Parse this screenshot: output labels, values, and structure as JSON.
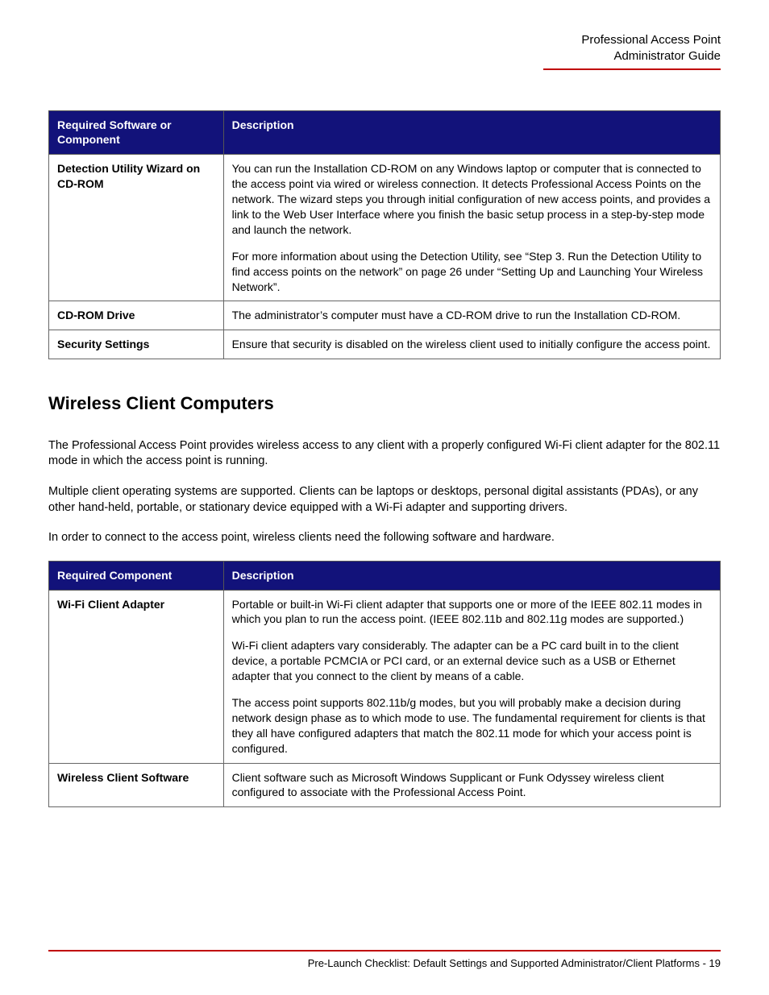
{
  "header": {
    "line1": "Professional Access Point",
    "line2": "Administrator Guide"
  },
  "colors": {
    "table_header_bg": "#12127a",
    "table_header_fg": "#ffffff",
    "rule_color": "#c00000"
  },
  "table1": {
    "col1_header": "Required Software or Component",
    "col2_header": "Description",
    "rows": [
      {
        "label": "Detection Utility Wizard on CD-ROM",
        "desc_p1": "You can run the Installation CD-ROM on any Windows laptop or computer that is connected to the access point via wired or wireless connection. It detects Professional Access Points on the network. The wizard steps you through initial configuration of new access points, and provides a link to the Web User Interface where you finish the basic setup process in a step-by-step mode and launch the network.",
        "desc_p2": "For more information about using the Detection Utility, see “Step 3. Run the Detection Utility to find access points on the network” on page 26 under “Setting Up and Launching Your Wireless Network”."
      },
      {
        "label": "CD-ROM Drive",
        "desc_p1": "The administrator’s computer must have a CD-ROM drive to run the Installation CD-ROM."
      },
      {
        "label": "Security Settings",
        "desc_p1": "Ensure that security is disabled on the wireless client used to initially configure the access point."
      }
    ]
  },
  "section_heading": "Wireless Client Computers",
  "paragraphs": {
    "p1": "The Professional Access Point provides wireless access to any client with a properly configured Wi-Fi client adapter for the 802.11 mode in which the access point is running.",
    "p2": "Multiple client operating systems are supported. Clients can be laptops or desktops, personal digital assistants (PDAs), or any other hand-held, portable, or stationary device equipped with a Wi-Fi adapter and supporting drivers.",
    "p3": "In order to connect to the access point, wireless clients need the following software and hardware."
  },
  "table2": {
    "col1_header": "Required Component",
    "col2_header": "Description",
    "rows": [
      {
        "label": "Wi-Fi Client Adapter",
        "desc_p1": "Portable or built-in Wi-Fi client adapter that supports one or more of the IEEE 802.11 modes in which you plan to run the access point. (IEEE 802.11b and 802.11g modes are supported.)",
        "desc_p2": "Wi-Fi client adapters vary considerably. The adapter can be a PC card built in to the client device, a portable PCMCIA or PCI card, or an external device such as a USB or Ethernet adapter that you connect to the client by means of a cable.",
        "desc_p3": "The access point supports 802.11b/g modes, but you will probably make a decision during network design phase as to which mode to use. The fundamental requirement for clients is that they all have configured adapters that match the 802.11 mode for which your access point is configured."
      },
      {
        "label": "Wireless Client Software",
        "desc_p1": "Client software such as Microsoft Windows Supplicant or Funk Odyssey wireless client configured to associate with the Professional Access Point."
      }
    ]
  },
  "footer": {
    "text": "Pre-Launch Checklist: Default Settings and Supported Administrator/Client Platforms - 19"
  }
}
